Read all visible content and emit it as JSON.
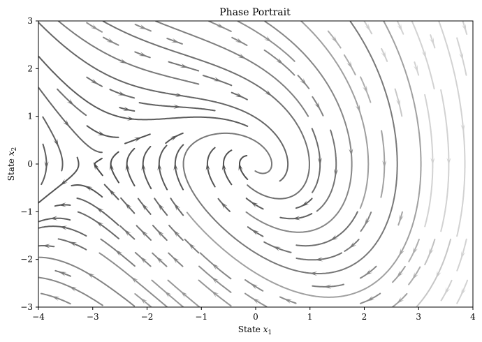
{
  "chart_data": {
    "type": "streamplot",
    "title": "Phase Portrait",
    "xlabel": "State x1",
    "ylabel": "State x2",
    "xlabel_math": {
      "base": "State ",
      "var": "x",
      "sub": "1"
    },
    "ylabel_math": {
      "base": "State ",
      "var": "x",
      "sub": "2"
    },
    "xlim": [
      -4,
      4
    ],
    "ylim": [
      -3,
      3
    ],
    "xticks": [
      -4,
      -3,
      -2,
      -1,
      0,
      1,
      2,
      3,
      4
    ],
    "yticks": [
      -3,
      -2,
      -1,
      0,
      1,
      2,
      3
    ],
    "xtick_labels": [
      "−4",
      "−3",
      "−2",
      "−1",
      "0",
      "1",
      "2",
      "3",
      "4"
    ],
    "ytick_labels": [
      "−3",
      "−2",
      "−1",
      "0",
      "1",
      "2",
      "3"
    ],
    "grid": false,
    "colormap": "grayscale (darker near origin, lighter far away)",
    "fixed_points": [
      {
        "x": 0,
        "y": 0,
        "kind": "stable spiral"
      },
      {
        "x": -3,
        "y": 0,
        "kind": "saddle"
      }
    ]
  }
}
